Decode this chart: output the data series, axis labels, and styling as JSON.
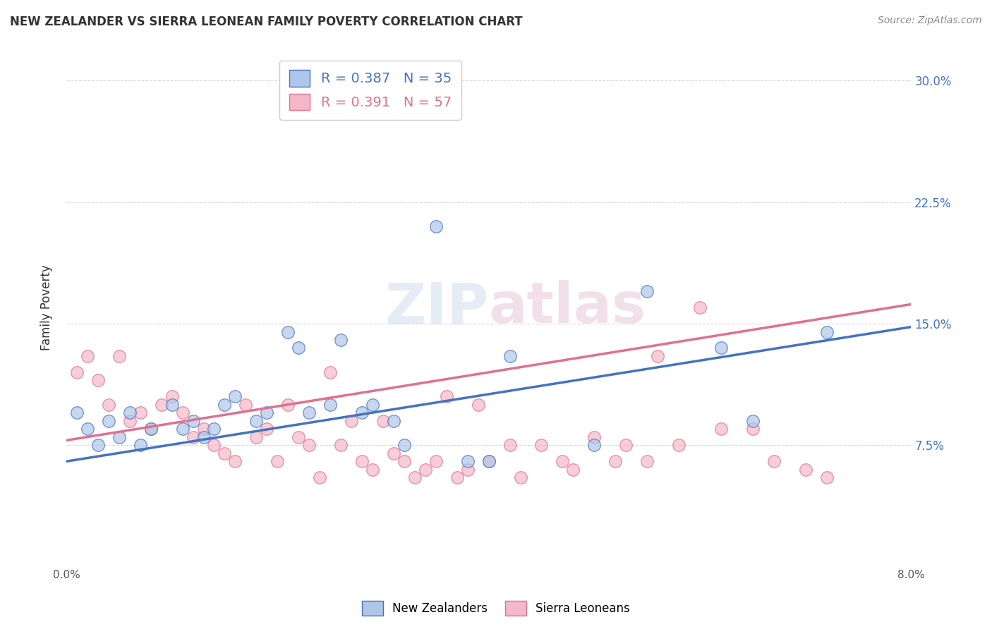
{
  "title": "NEW ZEALANDER VS SIERRA LEONEAN FAMILY POVERTY CORRELATION CHART",
  "source": "Source: ZipAtlas.com",
  "ylabel": "Family Poverty",
  "yticks": [
    "7.5%",
    "15.0%",
    "22.5%",
    "30.0%"
  ],
  "ytick_vals": [
    0.075,
    0.15,
    0.225,
    0.3
  ],
  "nz_color": "#aec6e8",
  "sl_color": "#f4b8c8",
  "nz_line_color": "#4472c4",
  "sl_line_color": "#e07090",
  "watermark": "ZIPatlas",
  "nz_R": 0.387,
  "sl_R": 0.391,
  "nz_N": 35,
  "sl_N": 57,
  "xmin": 0.0,
  "xmax": 0.08,
  "ymin": 0.0,
  "ymax": 0.32,
  "nz_line_x0": 0.0,
  "nz_line_y0": 0.065,
  "nz_line_x1": 0.08,
  "nz_line_y1": 0.148,
  "sl_line_x0": 0.0,
  "sl_line_y0": 0.078,
  "sl_line_x1": 0.08,
  "sl_line_y1": 0.162,
  "nz_x": [
    0.001,
    0.002,
    0.003,
    0.004,
    0.005,
    0.006,
    0.007,
    0.008,
    0.01,
    0.011,
    0.012,
    0.013,
    0.014,
    0.015,
    0.016,
    0.018,
    0.019,
    0.021,
    0.022,
    0.023,
    0.025,
    0.026,
    0.028,
    0.029,
    0.031,
    0.032,
    0.035,
    0.038,
    0.04,
    0.042,
    0.05,
    0.055,
    0.062,
    0.065,
    0.072
  ],
  "nz_y": [
    0.095,
    0.085,
    0.075,
    0.09,
    0.08,
    0.095,
    0.075,
    0.085,
    0.1,
    0.085,
    0.09,
    0.08,
    0.085,
    0.1,
    0.105,
    0.09,
    0.095,
    0.145,
    0.135,
    0.095,
    0.1,
    0.14,
    0.095,
    0.1,
    0.09,
    0.075,
    0.21,
    0.065,
    0.065,
    0.13,
    0.075,
    0.17,
    0.135,
    0.09,
    0.145
  ],
  "sl_x": [
    0.001,
    0.002,
    0.003,
    0.004,
    0.005,
    0.006,
    0.007,
    0.008,
    0.009,
    0.01,
    0.011,
    0.012,
    0.013,
    0.014,
    0.015,
    0.016,
    0.017,
    0.018,
    0.019,
    0.02,
    0.021,
    0.022,
    0.023,
    0.024,
    0.025,
    0.026,
    0.027,
    0.028,
    0.029,
    0.03,
    0.031,
    0.032,
    0.033,
    0.034,
    0.035,
    0.036,
    0.037,
    0.038,
    0.039,
    0.04,
    0.042,
    0.043,
    0.045,
    0.047,
    0.048,
    0.05,
    0.052,
    0.053,
    0.055,
    0.056,
    0.058,
    0.06,
    0.062,
    0.065,
    0.067,
    0.07,
    0.072
  ],
  "sl_y": [
    0.12,
    0.13,
    0.115,
    0.1,
    0.13,
    0.09,
    0.095,
    0.085,
    0.1,
    0.105,
    0.095,
    0.08,
    0.085,
    0.075,
    0.07,
    0.065,
    0.1,
    0.08,
    0.085,
    0.065,
    0.1,
    0.08,
    0.075,
    0.055,
    0.12,
    0.075,
    0.09,
    0.065,
    0.06,
    0.09,
    0.07,
    0.065,
    0.055,
    0.06,
    0.065,
    0.105,
    0.055,
    0.06,
    0.1,
    0.065,
    0.075,
    0.055,
    0.075,
    0.065,
    0.06,
    0.08,
    0.065,
    0.075,
    0.065,
    0.13,
    0.075,
    0.16,
    0.085,
    0.085,
    0.065,
    0.06,
    0.055
  ]
}
